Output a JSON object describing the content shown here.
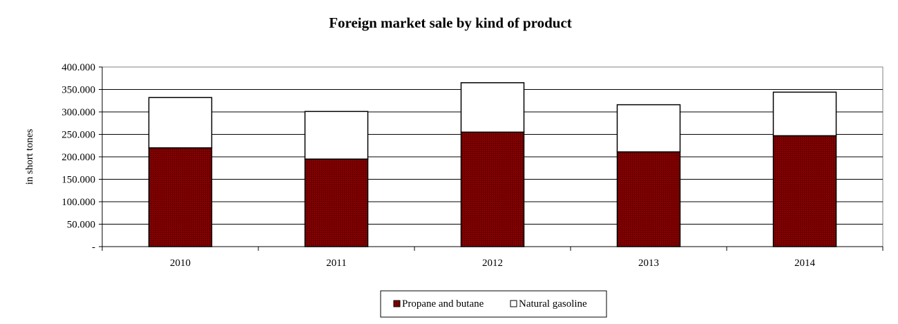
{
  "chart_data": {
    "type": "bar",
    "stacked": true,
    "title": "Foreign market sale by kind of product",
    "xlabel": "",
    "ylabel": "in short tones",
    "categories": [
      "2010",
      "2011",
      "2012",
      "2013",
      "2014"
    ],
    "series": [
      {
        "name": "Propane and butane",
        "values": [
          220000,
          195000,
          255000,
          211000,
          247000
        ],
        "color": "#800000"
      },
      {
        "name": "Natural gasoline",
        "values": [
          112000,
          106000,
          110000,
          105000,
          97000
        ],
        "color": "#ffffff"
      }
    ],
    "ylim": [
      0,
      400000
    ],
    "yticks": [
      "-",
      "50.000",
      "100.000",
      "150.000",
      "200.000",
      "250.000",
      "300.000",
      "350.000",
      "400.000"
    ],
    "grid": true,
    "legend": "bottom"
  }
}
